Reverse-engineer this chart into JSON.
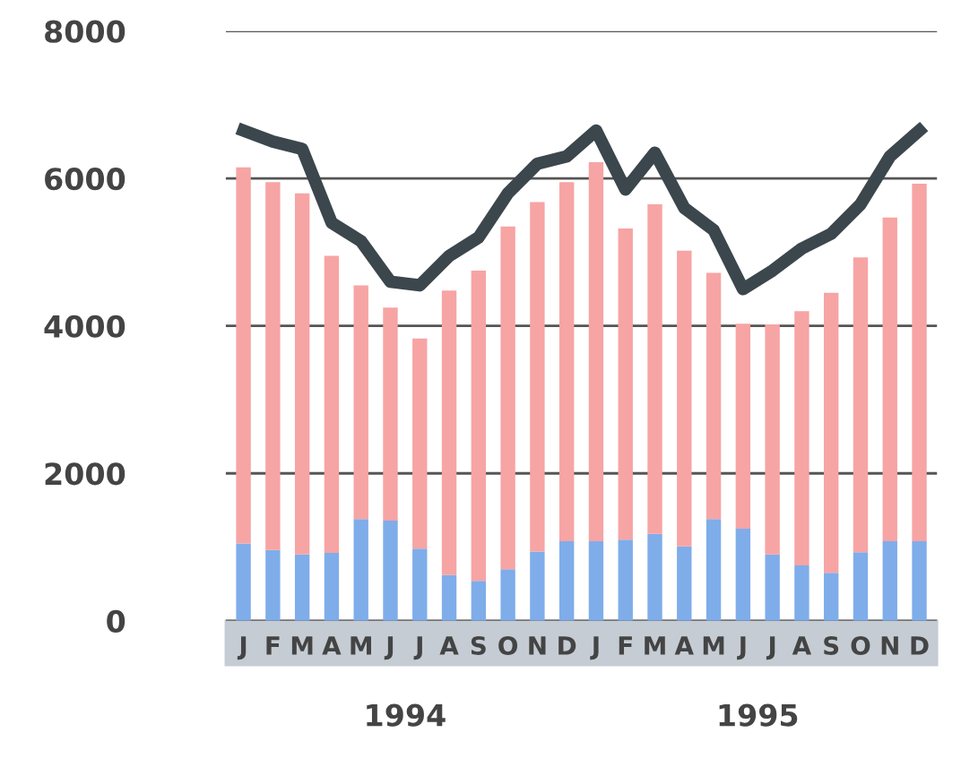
{
  "chart_data": {
    "type": "bar",
    "stacked": true,
    "categories": [
      "J",
      "F",
      "M",
      "A",
      "M",
      "J",
      "J",
      "A",
      "S",
      "O",
      "N",
      "D",
      "J",
      "F",
      "M",
      "A",
      "M",
      "J",
      "J",
      "A",
      "S",
      "O",
      "N",
      "D"
    ],
    "series": [
      {
        "color": "#7fadea",
        "values": [
          1050,
          960,
          900,
          920,
          1380,
          1360,
          980,
          620,
          540,
          700,
          940,
          1080,
          1080,
          1100,
          1180,
          1010,
          1380,
          1250,
          900,
          750,
          650,
          930,
          1080,
          1080
        ]
      },
      {
        "color": "#f7a4a4",
        "values": [
          5100,
          4990,
          4900,
          4030,
          3170,
          2890,
          2850,
          3860,
          4210,
          4650,
          4740,
          4870,
          5140,
          4220,
          4470,
          4010,
          3340,
          2780,
          3120,
          3450,
          3800,
          4000,
          4390,
          4850
        ]
      },
      {
        "type": "line",
        "color": "#3b474c",
        "values": [
          6650,
          6500,
          6400,
          5400,
          5150,
          4600,
          4550,
          4950,
          5200,
          5800,
          6200,
          6300,
          6650,
          5850,
          6350,
          5600,
          5300,
          4500,
          4750,
          5050,
          5250,
          5650,
          6300,
          6650
        ]
      }
    ],
    "annotations": [
      "1994",
      "1995"
    ],
    "ylim": [
      0,
      8000
    ],
    "yticks": [
      0,
      2000,
      4000,
      6000,
      8000
    ],
    "grid": "y",
    "line_style": "solid",
    "marker": "none"
  }
}
